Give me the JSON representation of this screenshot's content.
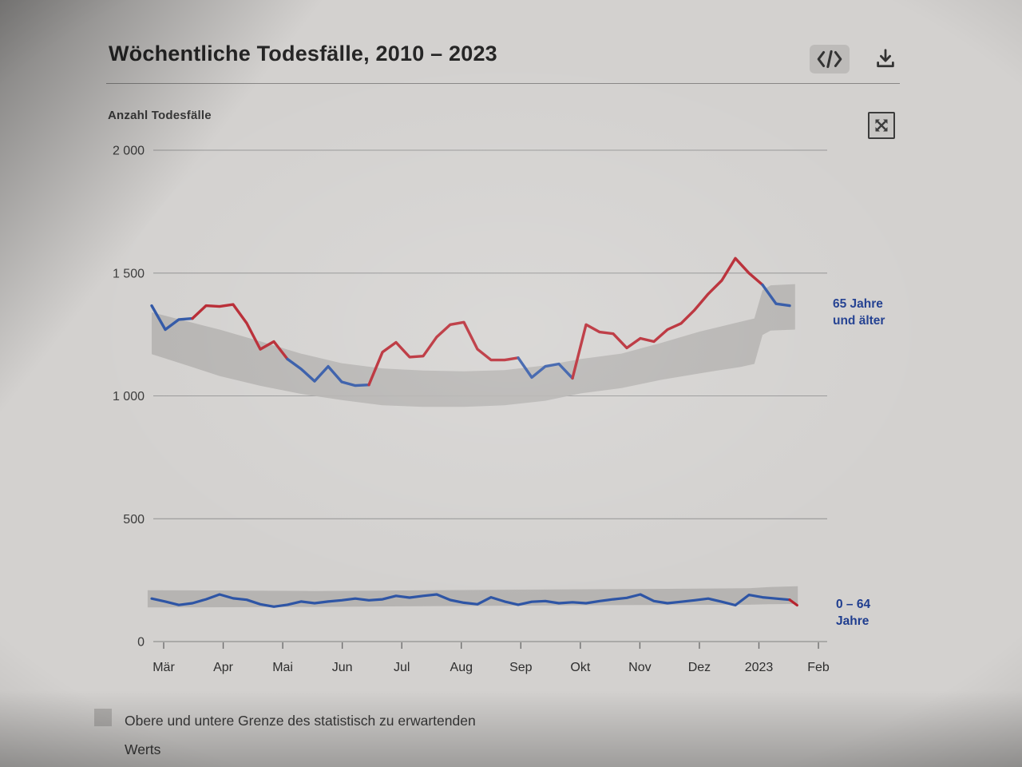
{
  "header": {
    "title": "Wöchentliche Todesfälle, 2010 – 2023",
    "buttons": [
      {
        "icon": "embed-code-icon"
      },
      {
        "icon": "download-icon"
      }
    ]
  },
  "panel": {
    "expand_icon": "expand-move-icon"
  },
  "legend": {
    "swatch_icon": "gray-band-swatch",
    "label": "Obere und untere Grenze des statistisch zu erwartenden Werts"
  },
  "chart_data": {
    "type": "line",
    "title": "Wöchentliche Todesfälle, 2010 – 2023",
    "ylabel": "Anzahl Todesfälle",
    "xlabel": "",
    "ylim": [
      0,
      2000
    ],
    "grid": "horizontal",
    "legend_position": "right-of-lines",
    "x_tick_labels": [
      "Mär",
      "Apr",
      "Mai",
      "Jun",
      "Jul",
      "Aug",
      "Sep",
      "Okt",
      "Nov",
      "Dez",
      "2023",
      "Feb"
    ],
    "y_tick_labels": [
      "0",
      "500",
      "1 000",
      "1 500",
      "2 000"
    ],
    "y_tick_values": [
      0,
      500,
      1000,
      1500,
      2000
    ],
    "colors": {
      "red": "#b6242e",
      "blue": "#2e55a5",
      "band": "#b2b0ae",
      "grid": "#989898",
      "label_blue": "#1f3d8f"
    },
    "series": [
      {
        "name": "65 Jahre und älter",
        "unit": "weekly deaths",
        "values": [
          1367,
          1270,
          1311,
          1315,
          1367,
          1364,
          1372,
          1296,
          1190,
          1221,
          1150,
          1110,
          1060,
          1120,
          1057,
          1042,
          1045,
          1178,
          1218,
          1158,
          1162,
          1240,
          1290,
          1300,
          1190,
          1146,
          1146,
          1155,
          1075,
          1120,
          1130,
          1072,
          1290,
          1260,
          1253,
          1195,
          1234,
          1221,
          1270,
          1295,
          1350,
          1415,
          1470,
          1560,
          1500,
          1452,
          1375,
          1367
        ],
        "segment_colors": [
          "blue",
          "blue",
          "blue",
          "red",
          "red",
          "red",
          "red",
          "red",
          "red",
          "red",
          "blue",
          "blue",
          "blue",
          "blue",
          "blue",
          "blue",
          "red",
          "red",
          "red",
          "red",
          "red",
          "red",
          "red",
          "red",
          "red",
          "red",
          "red",
          "blue",
          "blue",
          "blue",
          "blue",
          "red",
          "red",
          "red",
          "red",
          "red",
          "red",
          "red",
          "red",
          "red",
          "red",
          "red",
          "red",
          "red",
          "red",
          "blue",
          "blue"
        ]
      },
      {
        "name": "0 – 64 Jahre",
        "unit": "weekly deaths",
        "values": [
          175,
          163,
          149,
          156,
          172,
          192,
          176,
          170,
          152,
          142,
          150,
          163,
          156,
          163,
          168,
          175,
          168,
          172,
          186,
          179,
          186,
          192,
          169,
          158,
          152,
          180,
          163,
          150,
          162,
          165,
          156,
          160,
          156,
          165,
          172,
          178,
          192,
          165,
          156,
          162,
          168,
          175,
          162,
          148,
          190,
          180,
          175,
          170
        ],
        "tail": {
          "week": 47.55,
          "value": 148,
          "color": "red"
        }
      }
    ],
    "bands": [
      {
        "name": "expected-range-65plus",
        "description": "Obere und untere Grenze des statistisch zu erwartenden Werts",
        "controls": [
          [
            0,
            1340,
            1170
          ],
          [
            3,
            1298,
            1117
          ],
          [
            5,
            1270,
            1081
          ],
          [
            8,
            1222,
            1041
          ],
          [
            11,
            1172,
            1008
          ],
          [
            14,
            1133,
            983
          ],
          [
            17,
            1112,
            962
          ],
          [
            20,
            1103,
            955
          ],
          [
            23,
            1100,
            955
          ],
          [
            26,
            1105,
            962
          ],
          [
            29,
            1124,
            980
          ],
          [
            31.6,
            1150,
            1010
          ],
          [
            34.6,
            1172,
            1032
          ],
          [
            37.5,
            1215,
            1065
          ],
          [
            40.4,
            1262,
            1092
          ],
          [
            43.4,
            1302,
            1118
          ],
          [
            44.4,
            1315,
            1130
          ],
          [
            45,
            1430,
            1248
          ],
          [
            45.6,
            1450,
            1266
          ],
          [
            47.4,
            1455,
            1270
          ]
        ]
      },
      {
        "name": "expected-range-0-64",
        "description": "Obere und untere Grenze des statistisch zu erwartenden Werts",
        "controls": [
          [
            -0.3,
            209,
            139
          ],
          [
            12,
            206,
            141
          ],
          [
            24,
            210,
            145
          ],
          [
            36,
            214,
            149
          ],
          [
            44,
            217,
            150
          ],
          [
            45.5,
            222,
            152
          ],
          [
            47.6,
            225,
            153
          ]
        ]
      }
    ]
  }
}
